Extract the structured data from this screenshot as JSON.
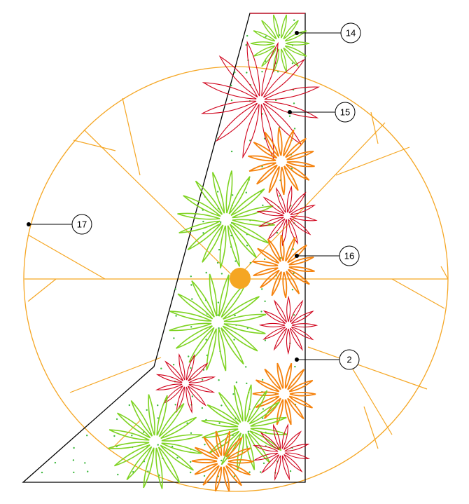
{
  "diagram": {
    "colors": {
      "outline": "#000000",
      "circle": "#f5a623",
      "center_dot": "#f5a623",
      "green_plant": "#7ed321",
      "red_plant": "#d0021b",
      "orange_plant": "#f5820d",
      "seed_dots": "#3fb93f"
    },
    "callouts": [
      {
        "label": "14"
      },
      {
        "label": "15"
      },
      {
        "label": "16"
      },
      {
        "label": "2"
      },
      {
        "label": "17"
      }
    ]
  }
}
